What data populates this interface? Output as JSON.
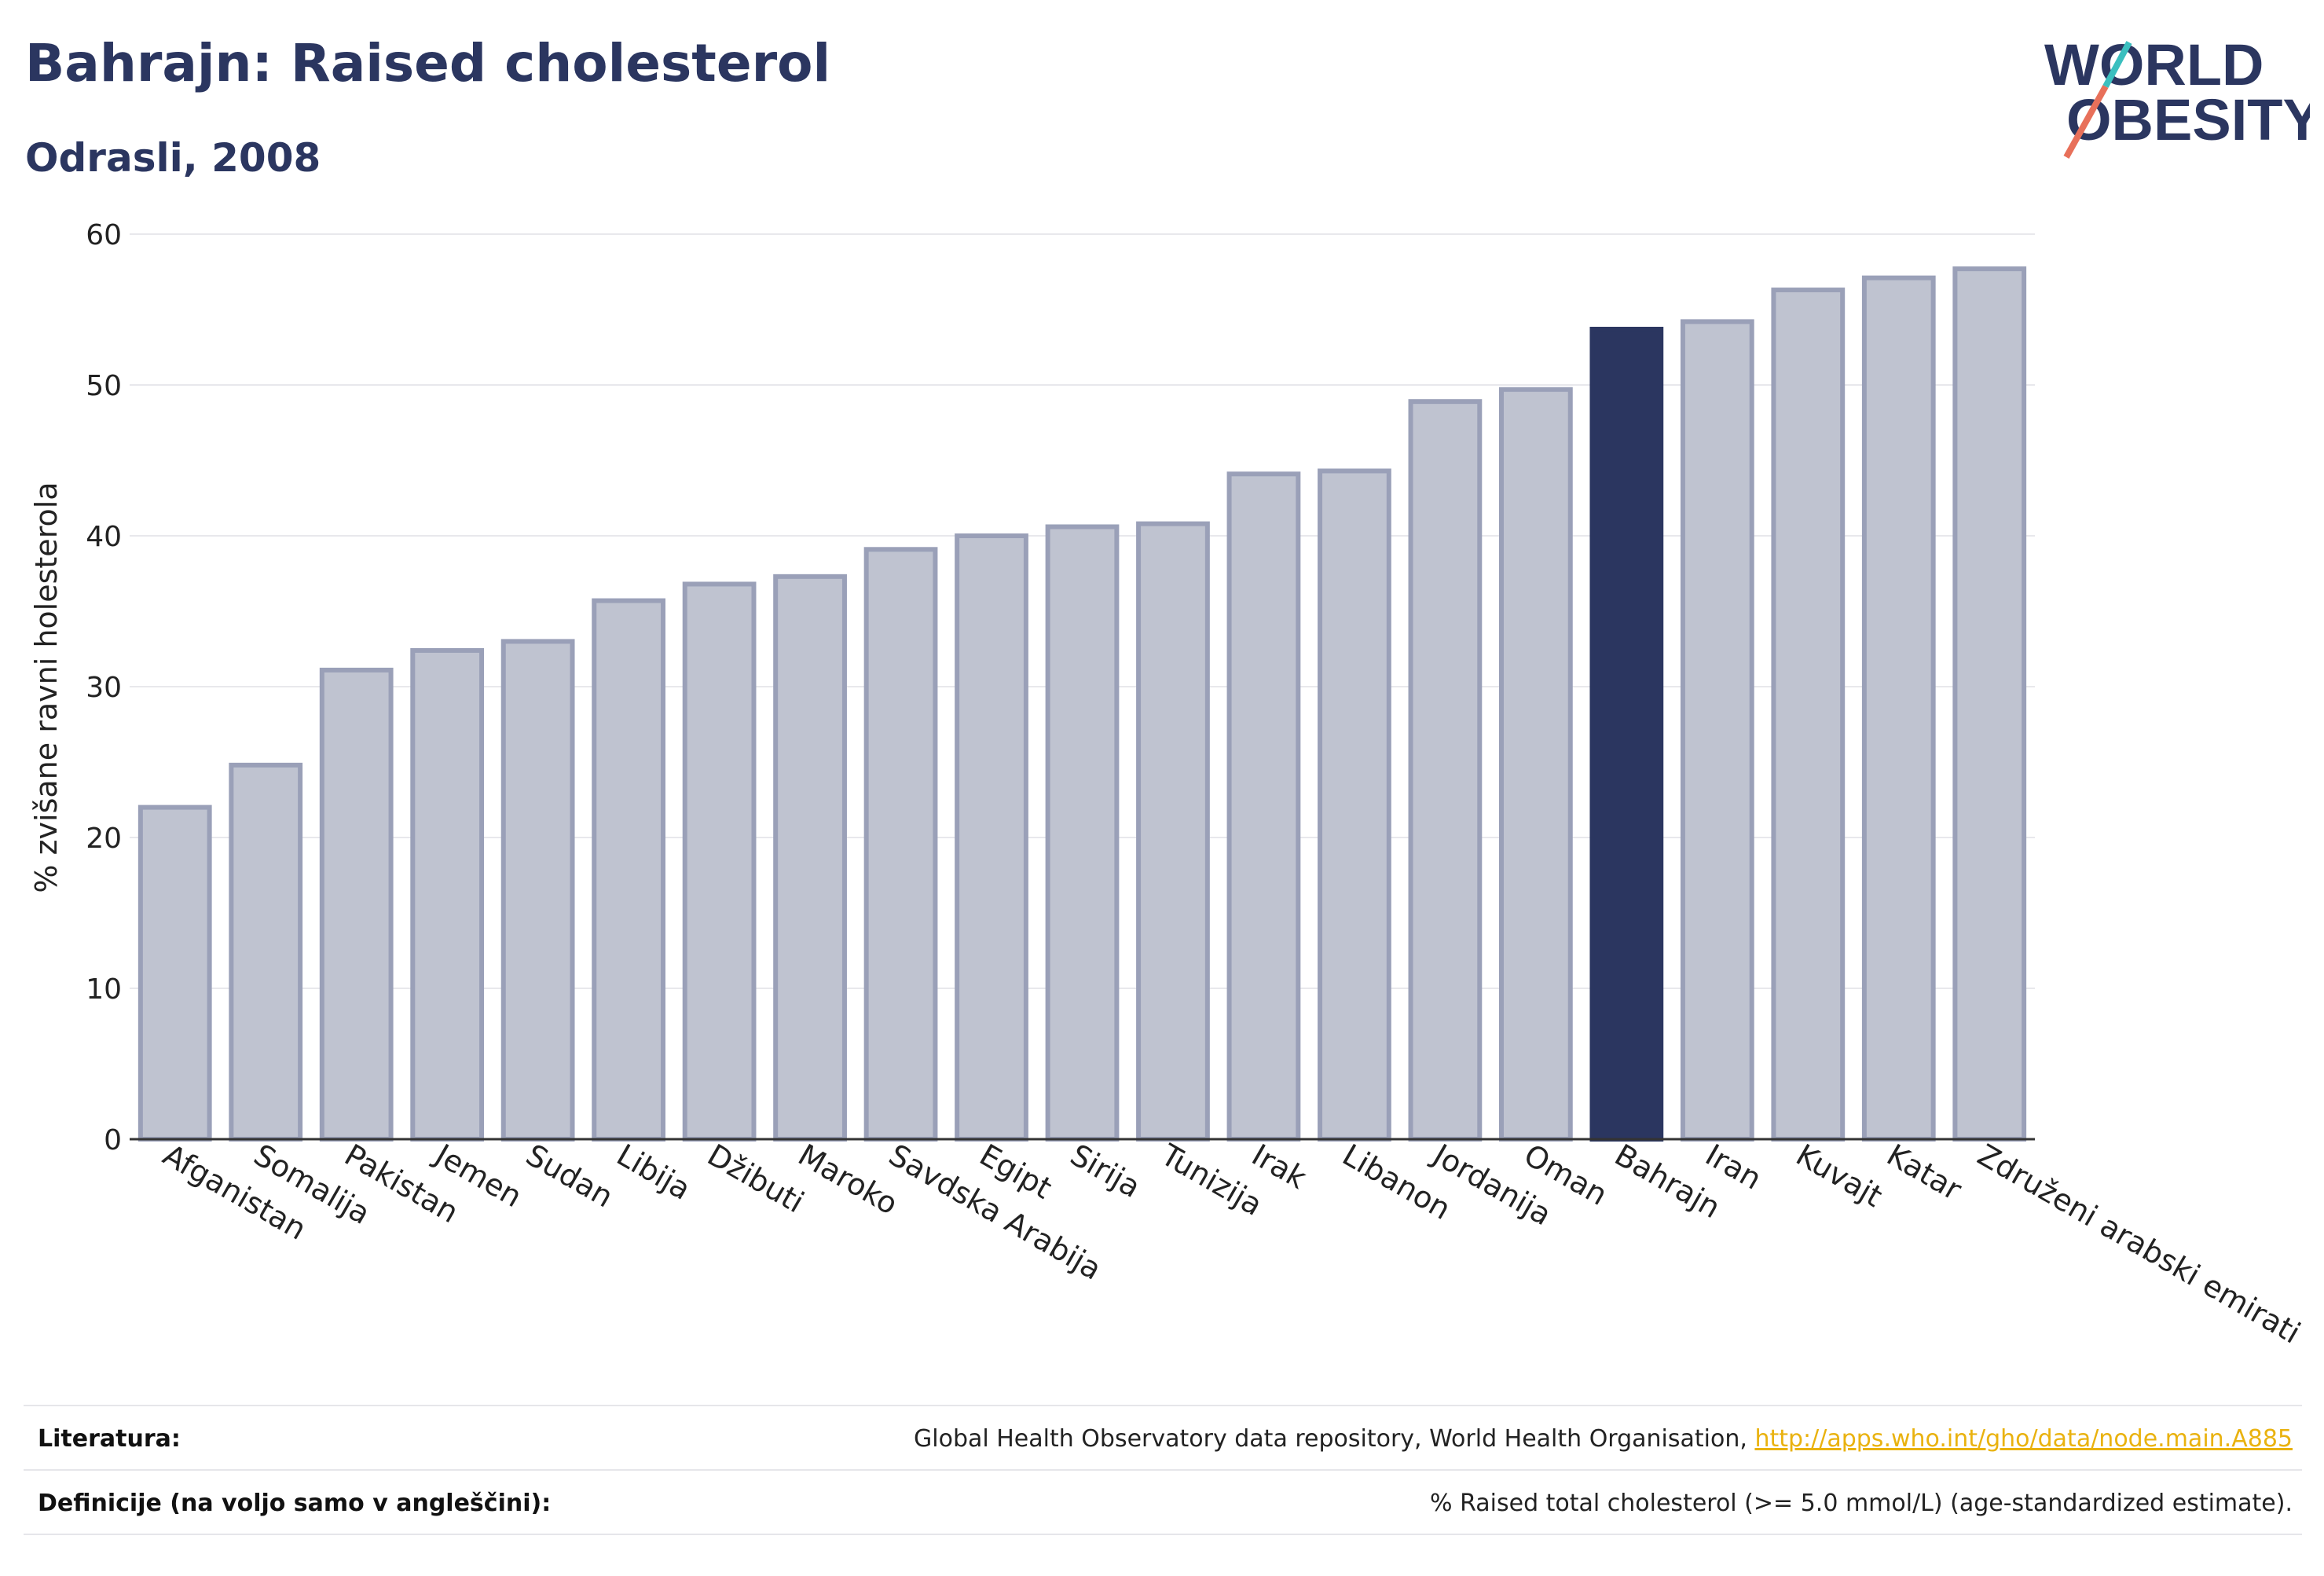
{
  "header": {
    "title": "Bahrajn: Raised cholesterol",
    "subtitle": "Odrasli, 2008"
  },
  "logo": {
    "line1": "WORLD",
    "line2": "OBESITY",
    "icon": "world-obesity-logo"
  },
  "colors": {
    "highlight": "#2b3660",
    "bar_fill": "#bfc3d0",
    "bar_stroke": "#9aa0b8",
    "title": "#2b3660",
    "link": "#e9b20f"
  },
  "chart_data": {
    "type": "bar",
    "title": "Bahrajn: Raised cholesterol",
    "subtitle": "Odrasli, 2008",
    "ylabel": "% zvišane ravni holesterola",
    "xlabel": "",
    "ylim": [
      0,
      60
    ],
    "yticks": [
      0,
      10,
      20,
      30,
      40,
      50,
      60
    ],
    "grid": true,
    "highlight_category": "Bahrajn",
    "categories": [
      "Afganistan",
      "Somalija",
      "Pakistan",
      "Jemen",
      "Sudan",
      "Libija",
      "Džibuti",
      "Maroko",
      "Savdska Arabija",
      "Egipt",
      "Sirija",
      "Tunizija",
      "Irak",
      "Libanon",
      "Jordanija",
      "Oman",
      "Bahrajn",
      "Iran",
      "Kuvajt",
      "Katar",
      "Združeni arabski emirati"
    ],
    "values": [
      22.0,
      24.8,
      31.1,
      32.4,
      33.0,
      35.7,
      36.8,
      37.3,
      39.1,
      40.0,
      40.6,
      40.8,
      44.1,
      44.3,
      48.9,
      49.7,
      53.7,
      54.2,
      56.3,
      57.1,
      57.7
    ]
  },
  "footer": {
    "sources_label": "Literatura:",
    "sources_text": "Global Health Observatory data repository, World Health Organisation, ",
    "sources_link": "http://apps.who.int/gho/data/node.main.A885",
    "definitions_label": "Definicije (na voljo samo v angleščini):",
    "definitions_text": "% Raised total cholesterol (>= 5.0 mmol/L) (age-standardized estimate)."
  }
}
